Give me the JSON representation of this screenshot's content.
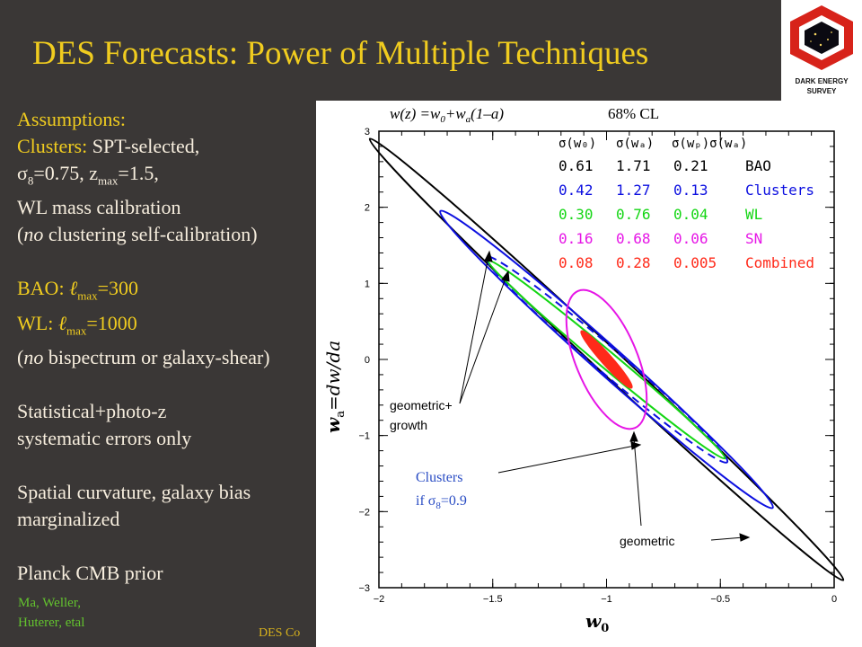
{
  "slide": {
    "title": "DES Forecasts: Power of Multiple Techniques",
    "logo_text": [
      "DARK ENERGY",
      "SURVEY"
    ],
    "assumptions": {
      "heading": "Assumptions:",
      "clusters_label": "Clusters:",
      "clusters_text": " SPT-selected,",
      "sigma_line": [
        "σ",
        "8",
        "=0.75, z",
        "max",
        "=1.5,"
      ],
      "wl_mass": "WL mass calibration",
      "no_clustering": [
        "(",
        "no",
        " clustering self-calibration)"
      ],
      "bao_line": [
        "BAO: ",
        "ℓ",
        "max",
        "=300"
      ],
      "wl_line": [
        "WL: ",
        "ℓ",
        "max",
        "=1000"
      ],
      "no_bispectrum": [
        "(",
        "no",
        " bispectrum or galaxy-shear)"
      ],
      "stat_errors_1": "Statistical+photo-z",
      "stat_errors_2": "systematic errors only",
      "spatial_1": "Spatial curvature, galaxy bias",
      "spatial_2": "marginalized",
      "planck": "Planck CMB prior"
    },
    "citation": [
      "Ma, Weller,",
      "Huterer, etal"
    ],
    "footer": "DES Co"
  },
  "colors": {
    "title": "#f0cc1f",
    "background": "#3a3736",
    "text": "#f7eede",
    "citation": "#63c32e",
    "bao": "#000000",
    "clusters": "#0d10e0",
    "wl": "#14d614",
    "sn": "#e616e6",
    "combined": "#ff2a1a"
  },
  "chart_data": {
    "type": "scatter",
    "title": "w(z) =w0+wa(1–a)    68% CL",
    "title_parts": [
      "w(z) =w",
      "0",
      "+w",
      "a",
      "(1–a)",
      "68% CL"
    ],
    "xlabel": "w",
    "xlabel_sub": "0",
    "ylabel": "w",
    "ylabel_sub": "a",
    "ylabel_rest": "=dw/da",
    "xlim": [
      -2,
      0
    ],
    "ylim": [
      -3,
      3
    ],
    "xticks": [
      "−2",
      "−1.5",
      "−1",
      "−0.5",
      "0"
    ],
    "yticks": [
      "−3",
      "−2",
      "−1",
      "0",
      "1",
      "2",
      "3"
    ],
    "table": {
      "headers": [
        "σ(w₀)",
        "σ(wₐ)",
        "σ(wₚ)σ(wₐ)"
      ],
      "rows": [
        {
          "w0": "0.61",
          "wa": "1.71",
          "fom": "0.21",
          "label": "BAO",
          "color": "#000000"
        },
        {
          "w0": "0.42",
          "wa": "1.27",
          "fom": "0.13",
          "label": "Clusters",
          "color": "#0d10e0"
        },
        {
          "w0": "0.30",
          "wa": "0.76",
          "fom": "0.04",
          "label": "WL",
          "color": "#14d614"
        },
        {
          "w0": "0.16",
          "wa": "0.68",
          "fom": "0.06",
          "label": "SN",
          "color": "#e616e6"
        },
        {
          "w0": "0.08",
          "wa": "0.28",
          "fom": "0.005",
          "label": "Combined",
          "color": "#ff2a1a"
        }
      ]
    },
    "series": [
      {
        "name": "BAO",
        "color": "#000000",
        "center": [
          -1,
          0
        ],
        "semi_major_dx": 1.04,
        "semi_major_dy": -2.9,
        "semi_minor": 0.055,
        "fill": false,
        "dashed": false
      },
      {
        "name": "Clusters",
        "color": "#0d10e0",
        "center": [
          -1,
          0
        ],
        "semi_major_dx": 0.73,
        "semi_major_dy": -1.95,
        "semi_minor": 0.062,
        "fill": false,
        "dashed": false
      },
      {
        "name": "Clusters if σ8=0.9",
        "color": "#0d10e0",
        "center": [
          -1,
          0
        ],
        "semi_major_dx": 0.53,
        "semi_major_dy": -1.35,
        "semi_minor": 0.055,
        "fill": false,
        "dashed": true
      },
      {
        "name": "WL",
        "color": "#14d614",
        "center": [
          -1,
          0
        ],
        "semi_major_dx": 0.52,
        "semi_major_dy": -1.3,
        "semi_minor": 0.037,
        "fill": false,
        "dashed": false
      },
      {
        "name": "SN",
        "color": "#e616e6",
        "center": [
          -1,
          0
        ],
        "semi_major_dx": 0.125,
        "semi_major_dy": -0.9,
        "semi_minor": 0.135,
        "fill": false,
        "dashed": false
      },
      {
        "name": "Combined",
        "color": "#ff2a1a",
        "center": [
          -1,
          0
        ],
        "semi_major_dx": 0.11,
        "semi_major_dy": -0.37,
        "semi_minor": 0.022,
        "fill": true,
        "dashed": false
      }
    ],
    "annotations": {
      "geometric_growth": [
        "geometric+",
        "growth"
      ],
      "clusters_if": [
        "Clusters",
        "if σ",
        "8",
        "=0.9"
      ],
      "geometric": "geometric"
    }
  }
}
